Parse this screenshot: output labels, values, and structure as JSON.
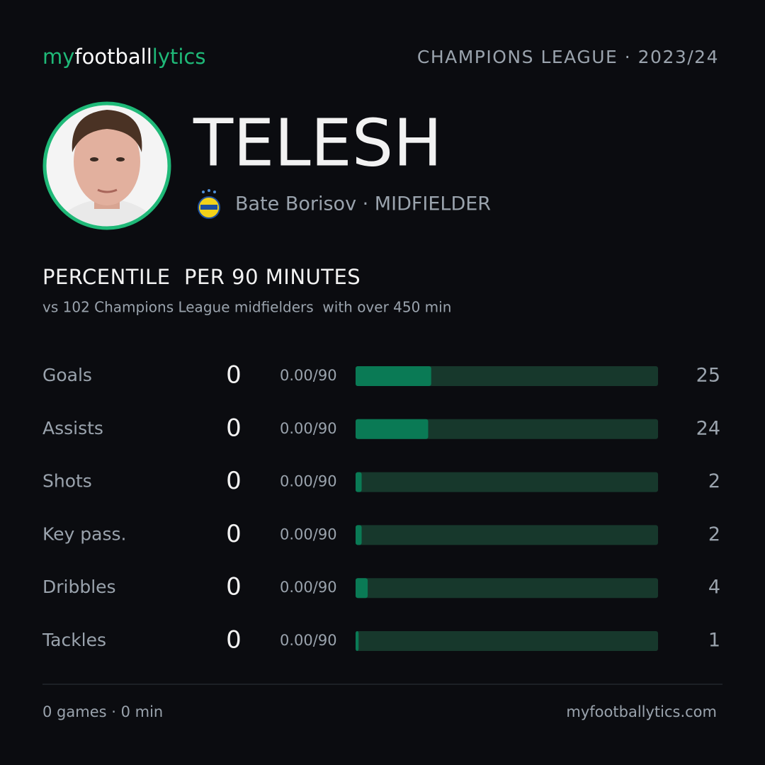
{
  "header": {
    "logo": [
      "my",
      "football",
      "lytics"
    ],
    "competition": "CHAMPIONS LEAGUE · 2023/24"
  },
  "player": {
    "name": "TELESH",
    "club_position": "Bate Borisov · MIDFIELDER"
  },
  "chart_data": {
    "type": "bar",
    "title": "PERCENTILE  PER 90 MINUTES",
    "subtitle": "vs 102 Champions League midfielders  with over 450 min",
    "categories": [
      "Goals",
      "Assists",
      "Shots",
      "Key pass.",
      "Dribbles",
      "Tackles"
    ],
    "counts": [
      "0",
      "0",
      "0",
      "0",
      "0",
      "0"
    ],
    "per90": [
      "0.00/90",
      "0.00/90",
      "0.00/90",
      "0.00/90",
      "0.00/90",
      "0.00/90"
    ],
    "values": [
      25,
      24,
      2,
      2,
      4,
      1
    ],
    "xlim": [
      0,
      100
    ],
    "color": "#0a7a55",
    "track_color": "#17382c"
  },
  "footer": {
    "summary": "0 games · 0 min",
    "site": "myfootballytics.com"
  }
}
